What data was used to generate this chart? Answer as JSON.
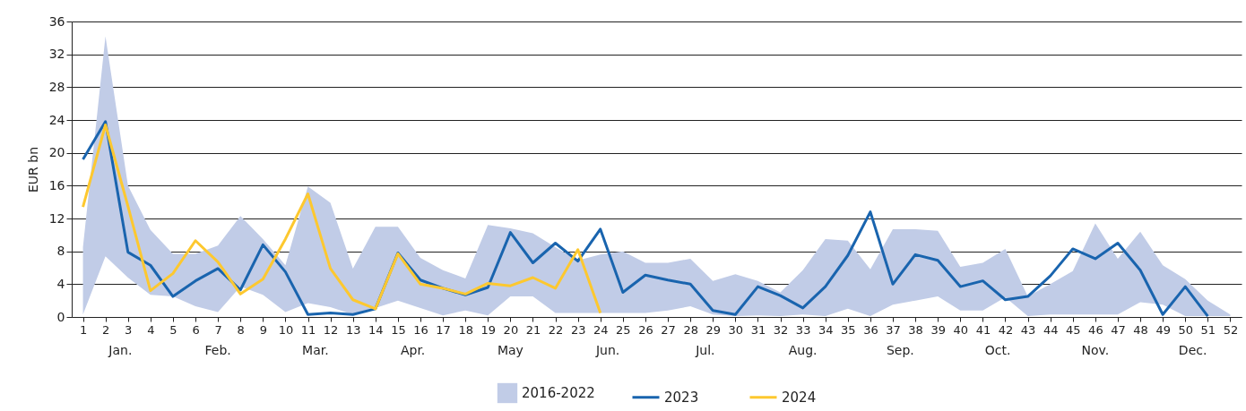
{
  "chart_data": {
    "type": "line",
    "ylabel": "EUR bn",
    "x": [
      1,
      2,
      3,
      4,
      5,
      6,
      7,
      8,
      9,
      10,
      11,
      12,
      13,
      14,
      15,
      16,
      17,
      18,
      19,
      20,
      21,
      22,
      23,
      24,
      25,
      26,
      27,
      28,
      29,
      30,
      31,
      32,
      33,
      34,
      35,
      36,
      37,
      38,
      39,
      40,
      41,
      42,
      43,
      44,
      45,
      46,
      47,
      48,
      49,
      50,
      51,
      52
    ],
    "xlim": [
      0.5,
      52.5
    ],
    "xticks": [
      1,
      2,
      3,
      4,
      5,
      6,
      7,
      8,
      9,
      10,
      11,
      12,
      13,
      14,
      15,
      16,
      17,
      18,
      19,
      20,
      21,
      22,
      23,
      24,
      25,
      26,
      27,
      28,
      29,
      30,
      31,
      32,
      33,
      34,
      35,
      36,
      37,
      38,
      39,
      40,
      41,
      42,
      43,
      44,
      45,
      46,
      47,
      48,
      49,
      50,
      51,
      52
    ],
    "ylim": [
      0,
      36
    ],
    "yticks": [
      0,
      4,
      8,
      12,
      16,
      20,
      24,
      28,
      32,
      36
    ],
    "grid": "y",
    "legend": "bottom",
    "line_style": "solid",
    "series": [
      {
        "name": "2016-2022",
        "color": "#c1cce7",
        "values": [
          null,
          null,
          null,
          null,
          null,
          null,
          null,
          null,
          null,
          null,
          null,
          null,
          null,
          null,
          null,
          null,
          null,
          null,
          null,
          null,
          null,
          null,
          null,
          null,
          null,
          null,
          null,
          null,
          null,
          null,
          null,
          null,
          null,
          null,
          null,
          null,
          null,
          null,
          null,
          null,
          null,
          null,
          null,
          null,
          null,
          null,
          null,
          null,
          null,
          null,
          null,
          null
        ],
        "lower": [
          0.3,
          7.4,
          4.8,
          2.7,
          2.5,
          1.3,
          0.6,
          3.7,
          2.7,
          0.6,
          1.7,
          1.2,
          0.3,
          1.1,
          2.0,
          1.1,
          0.2,
          0.8,
          0.2,
          2.5,
          2.5,
          0.5,
          0.5,
          0.5,
          0.5,
          0.5,
          0.8,
          1.3,
          0.3,
          0.1,
          0.2,
          0.1,
          0.3,
          0.1,
          1.0,
          0.1,
          1.5,
          2.0,
          2.5,
          0.8,
          0.8,
          2.4,
          0.1,
          0.3,
          0.3,
          0.3,
          0.3,
          1.8,
          1.5,
          0.1,
          0.1,
          0.1
        ],
        "upper": [
          8.5,
          34.2,
          16.0,
          10.6,
          7.7,
          7.7,
          8.7,
          12.3,
          9.5,
          6.3,
          15.9,
          13.9,
          5.9,
          11.0,
          11.0,
          7.2,
          5.7,
          4.7,
          11.2,
          10.8,
          10.2,
          8.5,
          6.9,
          7.6,
          8.0,
          6.6,
          6.6,
          7.1,
          4.4,
          5.2,
          4.4,
          3.0,
          5.7,
          9.5,
          9.3,
          5.8,
          10.7,
          10.7,
          10.5,
          6.1,
          6.6,
          8.3,
          2.5,
          4.0,
          5.6,
          11.4,
          7.1,
          10.4,
          6.3,
          4.6,
          2.0,
          0.3
        ]
      },
      {
        "name": "2023",
        "color": "#1964ae",
        "values": [
          19.2,
          23.8,
          7.9,
          6.3,
          2.5,
          4.4,
          5.9,
          3.3,
          8.8,
          5.5,
          0.3,
          0.5,
          0.3,
          1.0,
          7.8,
          4.5,
          3.5,
          2.7,
          3.6,
          10.3,
          6.6,
          9.0,
          6.8,
          10.7,
          3.0,
          5.1,
          4.5,
          4.0,
          0.8,
          0.3,
          3.7,
          2.6,
          1.1,
          3.7,
          7.5,
          12.8,
          4.0,
          7.6,
          6.9,
          3.7,
          4.4,
          2.1,
          2.5,
          5.0,
          8.3,
          7.1,
          9.0,
          5.7,
          0.3,
          3.7,
          0.1,
          null
        ]
      },
      {
        "name": "2024",
        "color": "#fdc82f",
        "values": [
          13.4,
          23.4,
          13.5,
          3.2,
          5.3,
          9.3,
          6.7,
          2.8,
          4.6,
          9.5,
          15.0,
          5.9,
          2.1,
          1.0,
          7.7,
          4.0,
          3.5,
          2.8,
          4.1,
          3.8,
          4.8,
          3.5,
          8.2,
          0.5,
          null,
          null,
          null,
          null,
          null,
          null,
          null,
          null,
          null,
          null,
          null,
          null,
          null,
          null,
          null,
          null,
          null,
          null,
          null,
          null,
          null,
          null,
          null,
          null,
          null,
          null,
          null,
          null
        ]
      }
    ],
    "annotations": [
      "Jan.",
      "Feb.",
      "Mar.",
      "Apr.",
      "May",
      "Jun.",
      "Jul.",
      "Aug.",
      "Sep.",
      "Oct.",
      "Nov.",
      "Dec."
    ]
  }
}
